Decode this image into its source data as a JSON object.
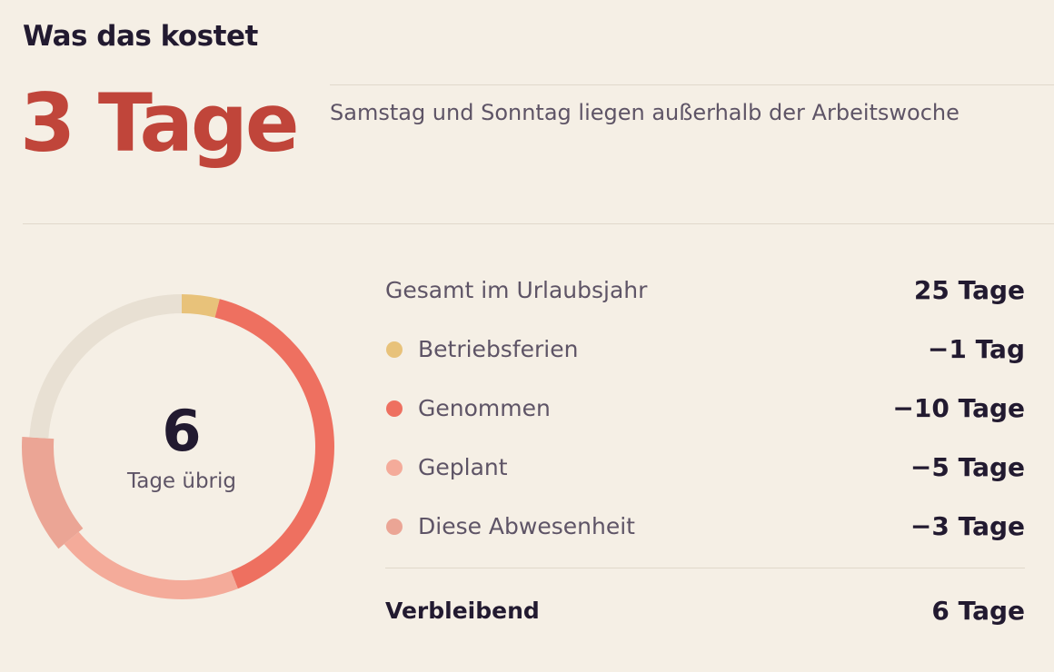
{
  "header": {
    "title": "Was das kostet"
  },
  "cost": {
    "value": "3 Tage",
    "note": "Samstag und Sonntag liegen außerhalb der Arbeitswoche"
  },
  "donut": {
    "center_value": "6",
    "center_label": "Tage übrig",
    "total_days": 25,
    "segments": [
      {
        "key": "betriebsferien",
        "days": 1,
        "color": "#e8c27a"
      },
      {
        "key": "genommen",
        "days": 10,
        "color": "#ee7060"
      },
      {
        "key": "geplant",
        "days": 5,
        "color": "#f4ab9a"
      },
      {
        "key": "diese_abwesenheit",
        "days": 3,
        "color": "#eba595",
        "highlighted": true
      },
      {
        "key": "verbleibend",
        "days": 6,
        "color": "#e8e0d3"
      }
    ]
  },
  "breakdown": {
    "total": {
      "label": "Gesamt im Urlaubsjahr",
      "value": "25 Tage"
    },
    "items": [
      {
        "label": "Betriebsferien",
        "value": "−1 Tag",
        "color": "#e8c27a"
      },
      {
        "label": "Genommen",
        "value": "−10 Tage",
        "color": "#ee7060"
      },
      {
        "label": "Geplant",
        "value": "−5 Tage",
        "color": "#f4ab9a"
      },
      {
        "label": "Diese Abwesenheit",
        "value": "−3 Tage",
        "color": "#eba595"
      }
    ],
    "remaining": {
      "label": "Verbleibend",
      "value": "6 Tage"
    }
  }
}
